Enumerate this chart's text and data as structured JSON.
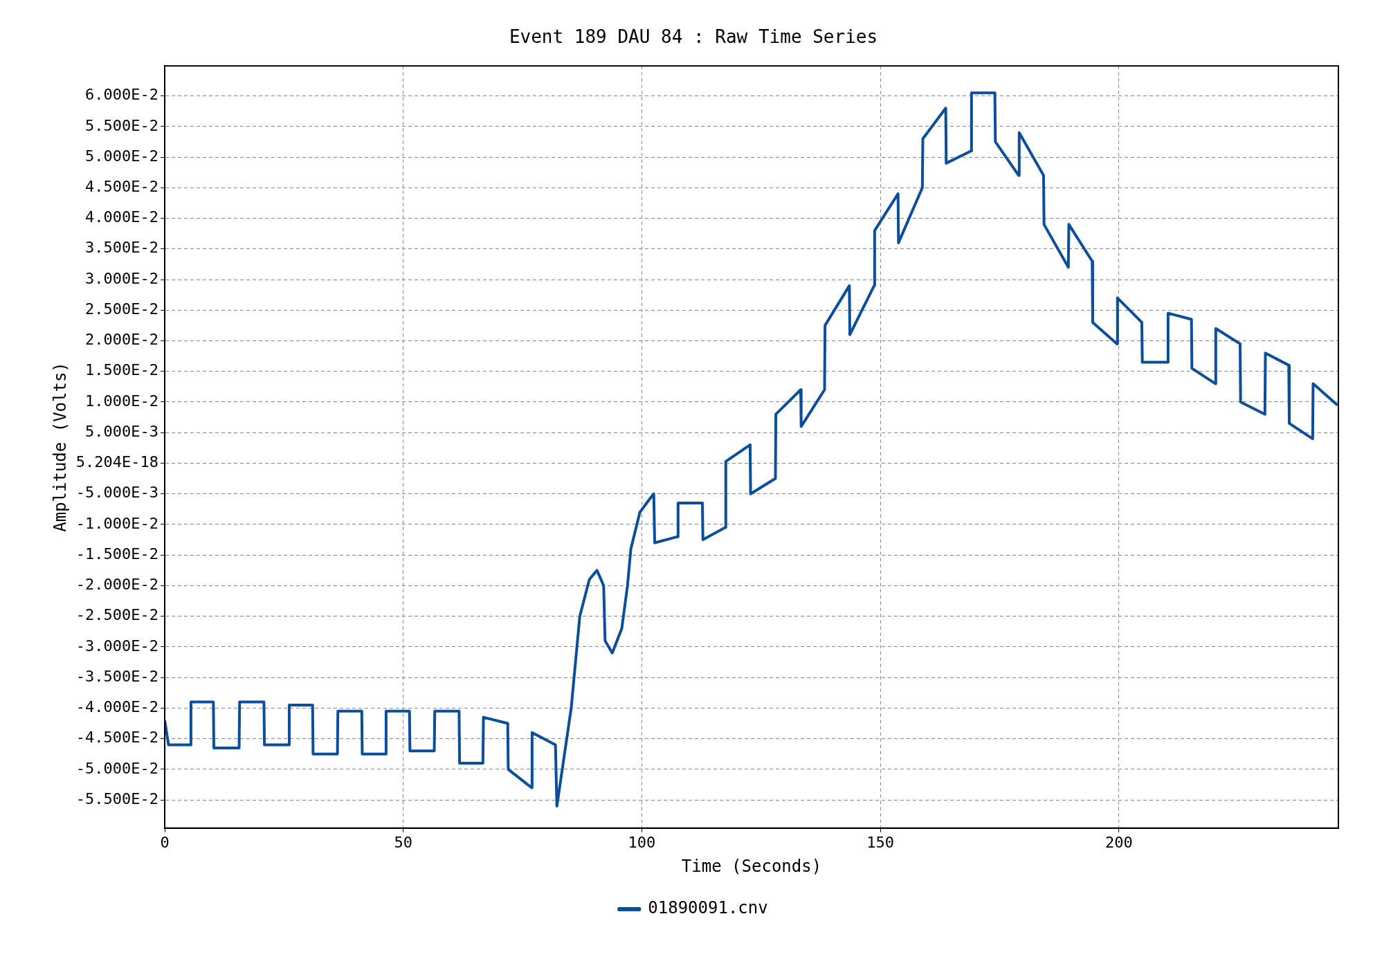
{
  "chart_data": {
    "type": "line",
    "title": "Event 189 DAU 84 : Raw Time Series",
    "xlabel": "Time (Seconds)",
    "ylabel": "Amplitude (Volts)",
    "x": [
      0,
      0.8,
      5.4,
      5.5,
      10.2,
      10.3,
      15.6,
      15.7,
      20.8,
      20.9,
      26,
      26.1,
      31,
      31.1,
      36.2,
      36.3,
      41.3,
      41.4,
      46.3,
      46.4,
      51.3,
      51.4,
      56.5,
      56.6,
      61.7,
      61.8,
      66.7,
      66.8,
      71.9,
      72,
      76.9,
      77,
      81.9,
      82.2,
      85.2,
      87,
      89,
      90.6,
      92,
      92.3,
      93.8,
      95.8,
      97,
      97.7,
      99.6,
      101.5,
      102.5,
      102.7,
      107.5,
      107.6,
      112.7,
      112.8,
      117.5,
      117.6,
      122.7,
      122.8,
      128,
      128.1,
      133.3,
      133.4,
      138.3,
      138.4,
      143.5,
      143.6,
      148.7,
      148.8,
      153.7,
      153.8,
      158.8,
      158.9,
      163.7,
      163.8,
      169,
      169.1,
      174,
      174.1,
      179,
      179.1,
      184.2,
      184.3,
      189.4,
      189.5,
      194.4,
      194.5,
      199.6,
      199.7,
      204.8,
      204.9,
      210.2,
      210.3,
      215.2,
      215.3,
      220.2,
      220.3,
      225.4,
      225.5,
      230.6,
      230.7,
      235.6,
      235.7,
      240.6,
      240.7,
      245.8
    ],
    "series": [
      {
        "name": "01890091.cnv",
        "color": "#0b4f9c",
        "values": [
          -0.042,
          -0.046,
          -0.046,
          -0.039,
          -0.039,
          -0.0465,
          -0.0465,
          -0.039,
          -0.039,
          -0.046,
          -0.046,
          -0.0395,
          -0.0395,
          -0.0475,
          -0.0475,
          -0.0405,
          -0.0405,
          -0.0475,
          -0.0475,
          -0.0405,
          -0.0405,
          -0.047,
          -0.047,
          -0.0405,
          -0.0405,
          -0.049,
          -0.049,
          -0.0415,
          -0.0425,
          -0.05,
          -0.053,
          -0.044,
          -0.046,
          -0.056,
          -0.04,
          -0.025,
          -0.019,
          -0.0175,
          -0.02,
          -0.029,
          -0.031,
          -0.027,
          -0.02,
          -0.014,
          -0.008,
          -0.006,
          -0.005,
          -0.013,
          -0.012,
          -0.0065,
          -0.0065,
          -0.0125,
          -0.0105,
          0.0003,
          0.003,
          -0.005,
          -0.0025,
          0.008,
          0.012,
          0.006,
          0.012,
          0.0225,
          0.029,
          0.021,
          0.029,
          0.038,
          0.044,
          0.036,
          0.045,
          0.053,
          0.058,
          0.049,
          0.051,
          0.0605,
          0.0605,
          0.0525,
          0.047,
          0.054,
          0.047,
          0.039,
          0.032,
          0.039,
          0.033,
          0.023,
          0.0195,
          0.027,
          0.023,
          0.0165,
          0.0165,
          0.0245,
          0.0235,
          0.0155,
          0.013,
          0.022,
          0.0195,
          0.01,
          0.008,
          0.018,
          0.016,
          0.0065,
          0.004,
          0.013,
          0.0095
        ]
      }
    ],
    "xlim": [
      0,
      246
    ],
    "xticks": [
      0,
      50,
      100,
      150,
      200
    ],
    "ylim": [
      -0.0596,
      0.0649
    ],
    "yticks": [
      {
        "value": 0.06,
        "label": "6.000E-2"
      },
      {
        "value": 0.055,
        "label": "5.500E-2"
      },
      {
        "value": 0.05,
        "label": "5.000E-2"
      },
      {
        "value": 0.045,
        "label": "4.500E-2"
      },
      {
        "value": 0.04,
        "label": "4.000E-2"
      },
      {
        "value": 0.035,
        "label": "3.500E-2"
      },
      {
        "value": 0.03,
        "label": "3.000E-2"
      },
      {
        "value": 0.025,
        "label": "2.500E-2"
      },
      {
        "value": 0.02,
        "label": "2.000E-2"
      },
      {
        "value": 0.015,
        "label": "1.500E-2"
      },
      {
        "value": 0.01,
        "label": "1.000E-2"
      },
      {
        "value": 0.005,
        "label": "5.000E-3"
      },
      {
        "value": 0,
        "label": "5.204E-18"
      },
      {
        "value": -0.005,
        "label": "-5.000E-3"
      },
      {
        "value": -0.01,
        "label": "-1.000E-2"
      },
      {
        "value": -0.015,
        "label": "-1.500E-2"
      },
      {
        "value": -0.02,
        "label": "-2.000E-2"
      },
      {
        "value": -0.025,
        "label": "-2.500E-2"
      },
      {
        "value": -0.03,
        "label": "-3.000E-2"
      },
      {
        "value": -0.035,
        "label": "-3.500E-2"
      },
      {
        "value": -0.04,
        "label": "-4.000E-2"
      },
      {
        "value": -0.045,
        "label": "-4.500E-2"
      },
      {
        "value": -0.05,
        "label": "-5.000E-2"
      },
      {
        "value": -0.055,
        "label": "-5.500E-2"
      }
    ],
    "grid": true,
    "legend": "bottom"
  }
}
